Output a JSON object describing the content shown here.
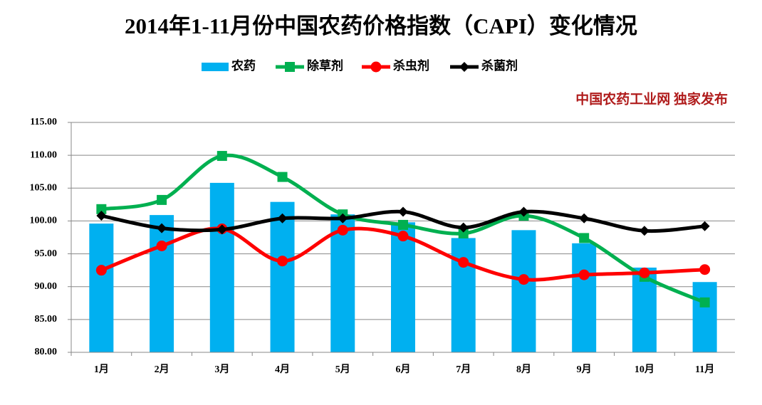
{
  "chart_data": {
    "type": "bar-line",
    "title": "2014年1-11月份中国农药价格指数（CAPI）变化情况",
    "annotation": "中国农药工业网 独家发布",
    "categories": [
      "1月",
      "2月",
      "3月",
      "4月",
      "5月",
      "6月",
      "7月",
      "8月",
      "9月",
      "10月",
      "11月"
    ],
    "series": [
      {
        "name": "农药",
        "type": "bar",
        "color": "#00b0f0",
        "values": [
          99.6,
          100.9,
          105.8,
          102.9,
          101.0,
          99.8,
          97.4,
          98.6,
          96.6,
          92.9,
          90.7
        ]
      },
      {
        "name": "除草剂",
        "type": "line",
        "marker": "square",
        "color": "#00b050",
        "values": [
          101.8,
          103.2,
          109.9,
          106.7,
          101.0,
          99.4,
          98.1,
          100.8,
          97.4,
          91.5,
          87.6
        ]
      },
      {
        "name": "杀虫剂",
        "type": "line",
        "marker": "circle",
        "color": "#ff0000",
        "values": [
          92.5,
          96.2,
          98.8,
          93.9,
          98.6,
          97.7,
          93.7,
          91.1,
          91.8,
          92.1,
          92.6
        ]
      },
      {
        "name": "杀菌剂",
        "type": "line",
        "marker": "diamond",
        "color": "#000000",
        "values": [
          100.8,
          98.9,
          98.7,
          100.4,
          100.4,
          101.4,
          99.0,
          101.4,
          100.4,
          98.5,
          99.2
        ]
      }
    ],
    "ylim": [
      80,
      115
    ],
    "yticks": [
      {
        "value": 80,
        "label": "80.00"
      },
      {
        "value": 85,
        "label": "85.00"
      },
      {
        "value": 90,
        "label": "90.00"
      },
      {
        "value": 95,
        "label": "95.00"
      },
      {
        "value": 100,
        "label": "100.00"
      },
      {
        "value": 105,
        "label": "105.00"
      },
      {
        "value": 110,
        "label": "110.00"
      },
      {
        "value": 115,
        "label": "115.00"
      }
    ],
    "grid": true
  }
}
